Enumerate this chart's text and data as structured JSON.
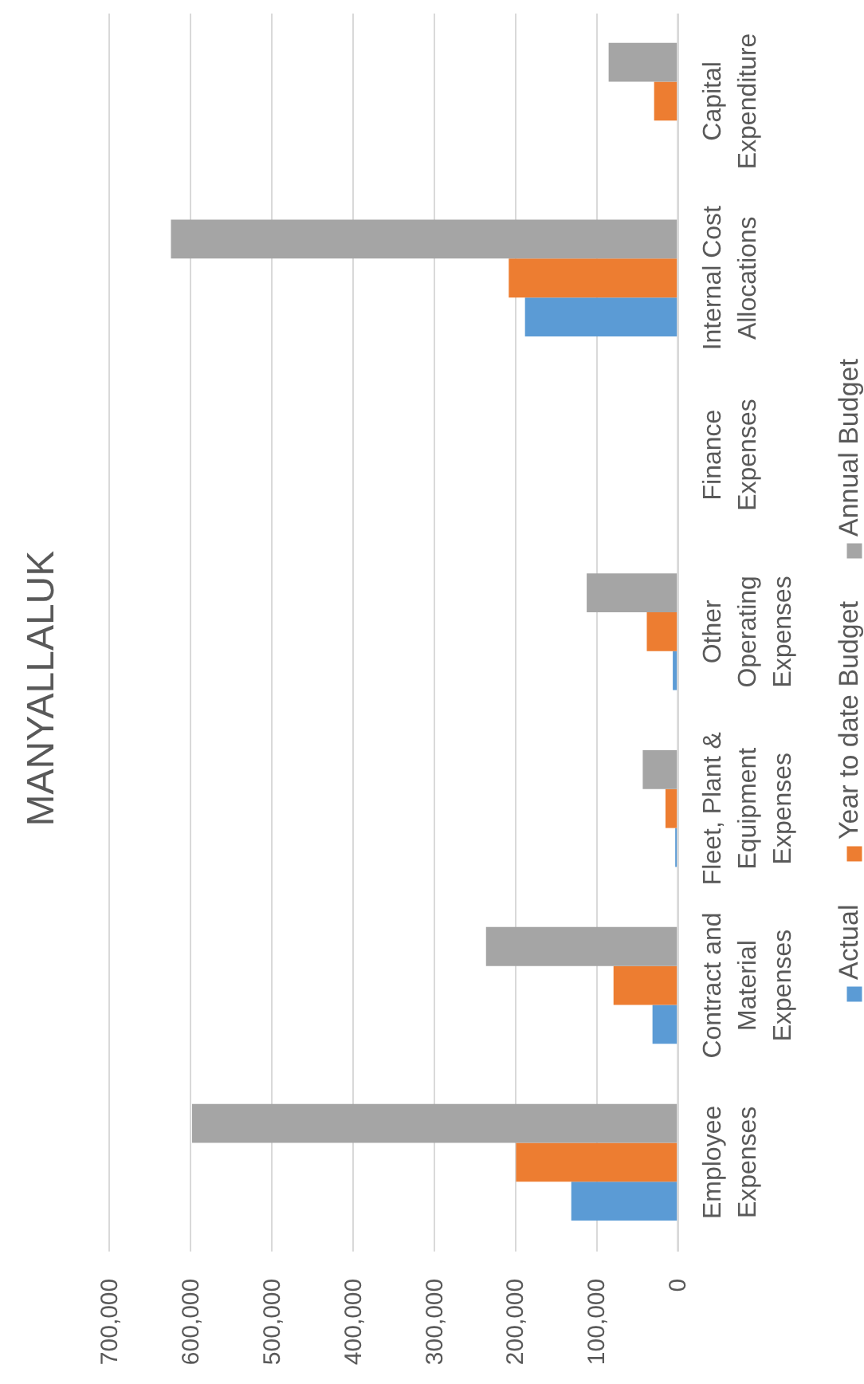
{
  "chart_data": {
    "type": "bar",
    "orientation": "horizontal",
    "title": "MANYALLALUK",
    "categories": [
      "Capital Expenditure",
      "Internal Cost Allocations",
      "Finance Expenses",
      "Other Operating Expenses",
      "Fleet, Plant & Equipment Expenses",
      "Contract and Material Expenses",
      "Employee Expenses"
    ],
    "series": [
      {
        "name": "Actual",
        "color": "#5b9bd5",
        "values": [
          null,
          187000,
          null,
          5000,
          2000,
          30000,
          130000
        ]
      },
      {
        "name": "Year to date Budget",
        "color": "#ed7d31",
        "values": [
          28000,
          207000,
          null,
          37000,
          14000,
          78000,
          198000
        ]
      },
      {
        "name": "Annual Budget",
        "color": "#a5a5a5",
        "values": [
          84000,
          623000,
          null,
          111000,
          42000,
          235000,
          597000
        ]
      }
    ],
    "xlim": [
      700000,
      0
    ],
    "xticks": [
      {
        "value": 700000,
        "label": "700,000"
      },
      {
        "value": 600000,
        "label": "600,000"
      },
      {
        "value": 500000,
        "label": "500,000"
      },
      {
        "value": 400000,
        "label": "400,000"
      },
      {
        "value": 300000,
        "label": "300,000"
      },
      {
        "value": 200000,
        "label": "200,000"
      },
      {
        "value": 100000,
        "label": "100,000"
      },
      0
    ],
    "grid": "x",
    "legend": "right"
  }
}
